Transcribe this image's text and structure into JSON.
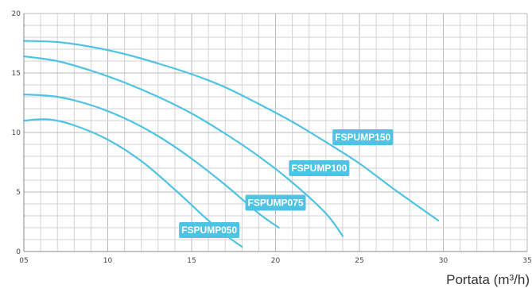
{
  "chart_data": {
    "type": "line",
    "title": "",
    "xlabel": "Portata (m³/h)",
    "ylabel": "",
    "xlim": [
      5,
      35
    ],
    "ylim": [
      0,
      20
    ],
    "grid": true,
    "x_tick_labels": [
      {
        "value": 5,
        "label": "05"
      },
      {
        "value": 10,
        "label": "10"
      },
      {
        "value": 15,
        "label": "15"
      },
      {
        "value": 20,
        "label": "20"
      },
      {
        "value": 25,
        "label": "25"
      },
      {
        "value": 30,
        "label": "30"
      },
      {
        "value": 35,
        "label": "35"
      }
    ],
    "y_tick_labels": [
      {
        "value": 0,
        "label": "0"
      },
      {
        "value": 5,
        "label": "5"
      },
      {
        "value": 10,
        "label": "10"
      },
      {
        "value": 15,
        "label": "15"
      },
      {
        "value": 20,
        "label": "20"
      }
    ],
    "line_color": "#4fc3e3",
    "label_color": "#4fc3e3",
    "series": [
      {
        "name": "FSPUMP050",
        "x": [
          5,
          6.5,
          8,
          10,
          12,
          14,
          16,
          17.2,
          18
        ],
        "y": [
          11.0,
          11.1,
          10.6,
          9.4,
          7.6,
          5.2,
          2.6,
          1.2,
          0.4
        ]
      },
      {
        "name": "FSPUMP075",
        "x": [
          5,
          7,
          9,
          11,
          13,
          15,
          17,
          19,
          20.2
        ],
        "y": [
          13.2,
          13.0,
          12.3,
          11.2,
          9.7,
          7.8,
          5.6,
          3.2,
          2.0
        ]
      },
      {
        "name": "FSPUMP100",
        "x": [
          5,
          7,
          9,
          11,
          13,
          15,
          17,
          19,
          21,
          23,
          24
        ],
        "y": [
          16.4,
          16.0,
          15.2,
          14.2,
          13.0,
          11.6,
          9.9,
          8.0,
          5.8,
          3.2,
          1.3
        ]
      },
      {
        "name": "FSPUMP150",
        "x": [
          5,
          7,
          9,
          11,
          13,
          15,
          17,
          19,
          21,
          23,
          25,
          27,
          29.7
        ],
        "y": [
          17.7,
          17.6,
          17.2,
          16.6,
          15.8,
          14.9,
          13.8,
          12.4,
          10.9,
          9.2,
          7.4,
          5.3,
          2.6
        ]
      }
    ],
    "label_anchors": [
      {
        "x": 16.05,
        "y": 1.8
      },
      {
        "x": 20.0,
        "y": 4.1
      },
      {
        "x": 22.6,
        "y": 7.0
      },
      {
        "x": 25.2,
        "y": 9.6
      }
    ]
  }
}
